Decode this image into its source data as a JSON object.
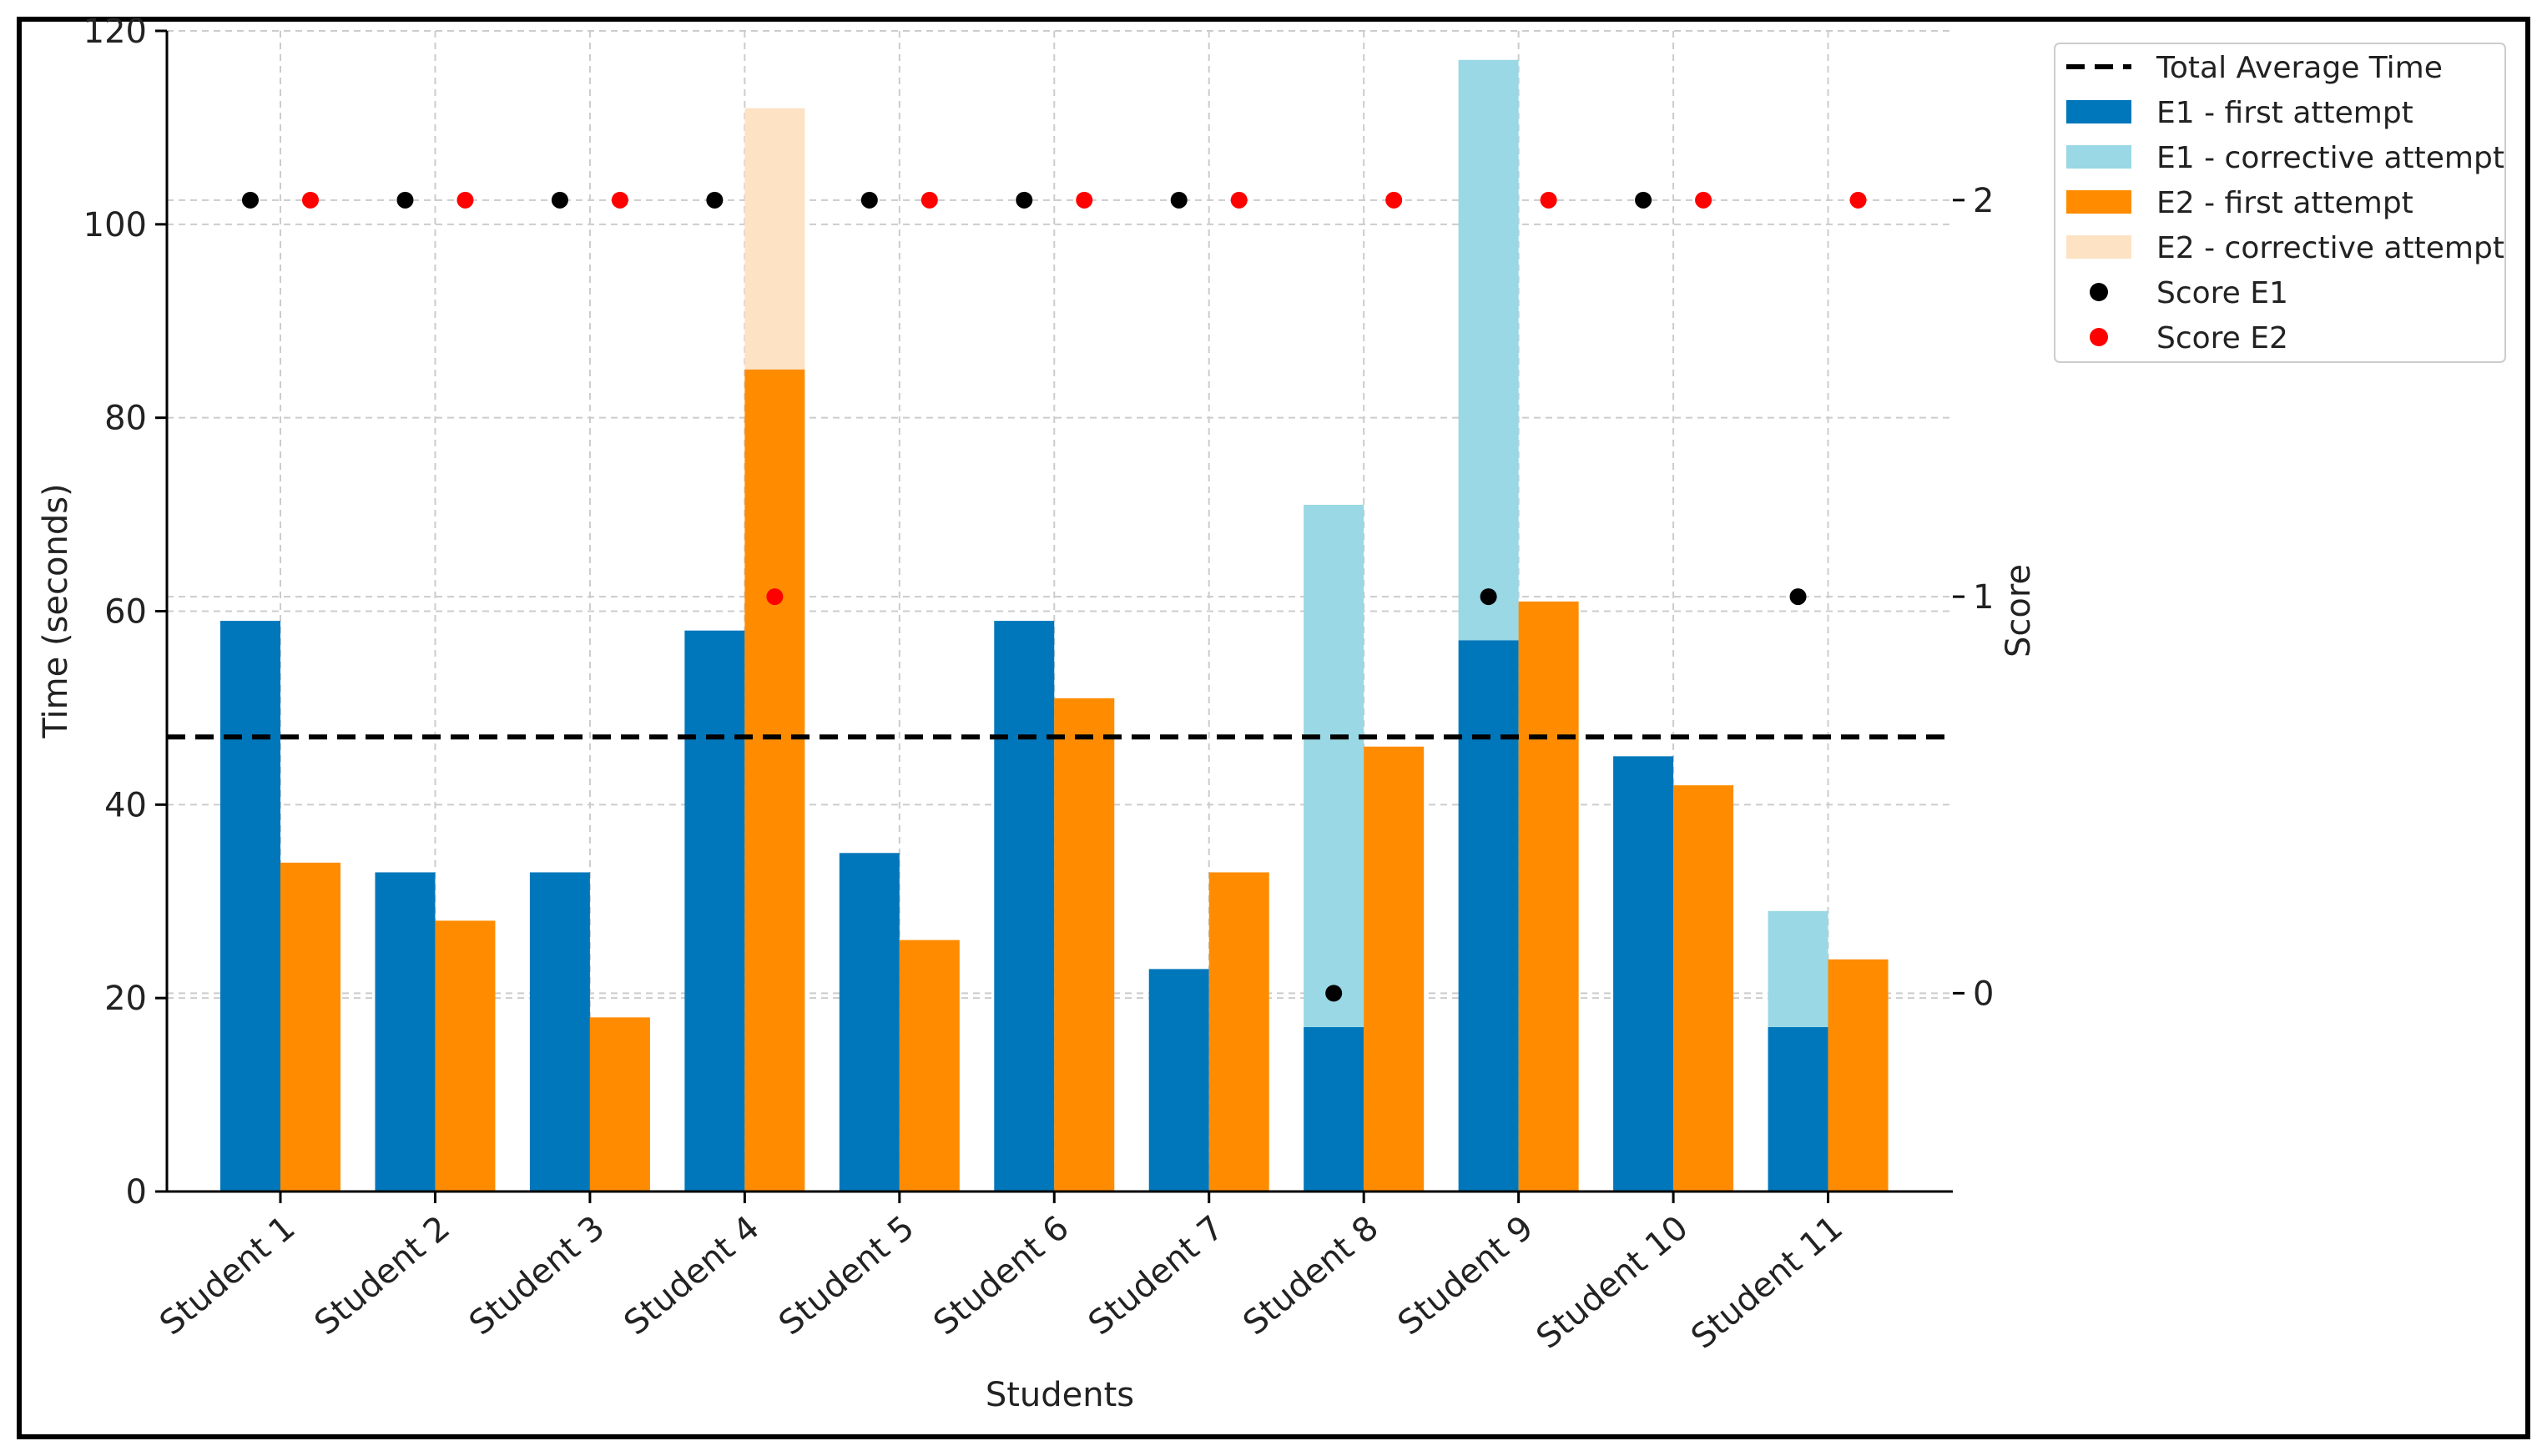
{
  "chart_data": {
    "type": "bar",
    "title": "",
    "xlabel": "Students",
    "ylabel": "Time (seconds)",
    "y2label": "Score",
    "ylim": [
      0,
      120
    ],
    "yticks": [
      0,
      20,
      40,
      60,
      80,
      100,
      120
    ],
    "y2ticks": [
      0,
      1,
      2
    ],
    "y2_map": {
      "0": 20.5,
      "1": 61.5,
      "2": 102.5
    },
    "grid": true,
    "legend_position": "top-right",
    "categories": [
      "Student 1",
      "Student 2",
      "Student 3",
      "Student 4",
      "Student 5",
      "Student 6",
      "Student 7",
      "Student 8",
      "Student 9",
      "Student 10",
      "Student 11"
    ],
    "average_time": 47,
    "series": [
      {
        "name": "E1 - first attempt",
        "color": "#0077BB",
        "values": [
          59,
          33,
          33,
          58,
          35,
          59,
          23,
          17,
          57,
          45,
          17
        ]
      },
      {
        "name": "E1 - corrective attempt",
        "color": "#99D8E4",
        "values": [
          0,
          0,
          0,
          0,
          0,
          0,
          0,
          54,
          60,
          0,
          12
        ]
      },
      {
        "name": "E2 - first attempt",
        "color": "#FF8C00",
        "values": [
          34,
          28,
          18,
          85,
          26,
          51,
          33,
          46,
          61,
          42,
          24
        ]
      },
      {
        "name": "E2 - corrective attempt",
        "color": "#FDE2C4",
        "values": [
          0,
          0,
          0,
          27,
          0,
          0,
          0,
          0,
          0,
          0,
          0
        ]
      }
    ],
    "scores": [
      {
        "name": "Score E1",
        "color": "#000000",
        "values": [
          2,
          2,
          2,
          2,
          2,
          2,
          2,
          0,
          1,
          2,
          1
        ]
      },
      {
        "name": "Score E2",
        "color": "#FF0000",
        "values": [
          2,
          2,
          2,
          1,
          2,
          2,
          2,
          2,
          2,
          2,
          2
        ]
      }
    ],
    "legend": [
      {
        "label": "Total Average Time",
        "kind": "dash",
        "color": "#000000"
      },
      {
        "label": "E1 - first attempt",
        "kind": "patch",
        "color": "#0077BB"
      },
      {
        "label": "E1 - corrective attempt",
        "kind": "patch",
        "color": "#99D8E4"
      },
      {
        "label": "E2 - first attempt",
        "kind": "patch",
        "color": "#FF8C00"
      },
      {
        "label": "E2 - corrective attempt",
        "kind": "patch",
        "color": "#FDE2C4"
      },
      {
        "label": "Score E1",
        "kind": "dot",
        "color": "#000000"
      },
      {
        "label": "Score E2",
        "kind": "dot",
        "color": "#FF0000"
      }
    ]
  }
}
